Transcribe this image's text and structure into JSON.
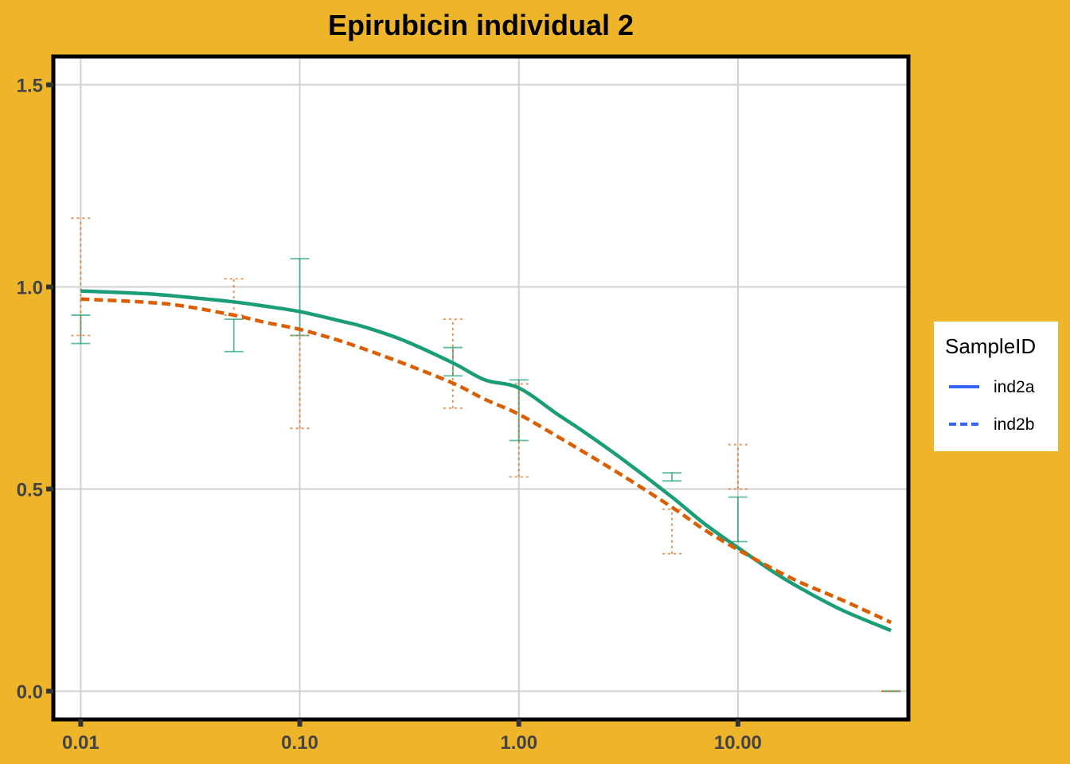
{
  "chart_data": {
    "type": "line",
    "title": "Epirubicin individual 2",
    "xlabel": "",
    "ylabel": "",
    "x_scale": "log10",
    "xlim": [
      0.0075,
      60
    ],
    "ylim": [
      -0.07,
      1.57
    ],
    "x_ticks": [
      0.01,
      0.1,
      1,
      10
    ],
    "x_tick_labels": [
      "0.01",
      "0.10",
      "1.00",
      "10.00"
    ],
    "y_ticks": [
      0,
      0.5,
      1,
      1.5
    ],
    "y_tick_labels": [
      "0.0",
      "0.5",
      "1.0",
      "1.5"
    ],
    "grid": true,
    "legend": {
      "title": "SampleID",
      "placement": "right",
      "entries": [
        {
          "label": "ind2a",
          "line_color": "#3366FF",
          "dash": "solid"
        },
        {
          "label": "ind2b",
          "line_color": "#3366FF",
          "dash": "dashed"
        }
      ]
    },
    "series": [
      {
        "name": "ind2a",
        "color": "#1B9E77",
        "dash": "solid",
        "fit_x": [
          0.01,
          0.02,
          0.03,
          0.05,
          0.07,
          0.1,
          0.15,
          0.2,
          0.3,
          0.5,
          0.7,
          1,
          1.5,
          2,
          3,
          5,
          7,
          10,
          15,
          20,
          30,
          50
        ],
        "fit_y": [
          0.99,
          0.983,
          0.975,
          0.963,
          0.952,
          0.939,
          0.917,
          0.9,
          0.867,
          0.812,
          0.77,
          0.75,
          0.685,
          0.64,
          0.572,
          0.48,
          0.415,
          0.355,
          0.29,
          0.25,
          0.2,
          0.15
        ],
        "points": [
          {
            "x": 0.01,
            "low": 0.86,
            "high": 0.93
          },
          {
            "x": 0.05,
            "low": 0.84,
            "high": 0.92
          },
          {
            "x": 0.1,
            "low": 0.88,
            "high": 1.07
          },
          {
            "x": 0.5,
            "low": 0.78,
            "high": 0.85
          },
          {
            "x": 1,
            "low": 0.62,
            "high": 0.77
          },
          {
            "x": 5,
            "low": 0.52,
            "high": 0.54
          },
          {
            "x": 10,
            "low": 0.37,
            "high": 0.48
          },
          {
            "x": 50,
            "low": 0.0,
            "high": 0.0
          }
        ]
      },
      {
        "name": "ind2b",
        "color": "#D95F02",
        "dash": "dashed",
        "fit_x": [
          0.01,
          0.02,
          0.03,
          0.05,
          0.07,
          0.1,
          0.15,
          0.2,
          0.3,
          0.5,
          0.7,
          1,
          1.5,
          2,
          3,
          5,
          7,
          10,
          15,
          20,
          30,
          50
        ],
        "fit_y": [
          0.97,
          0.962,
          0.952,
          0.93,
          0.912,
          0.895,
          0.868,
          0.845,
          0.81,
          0.762,
          0.722,
          0.685,
          0.63,
          0.59,
          0.532,
          0.455,
          0.4,
          0.35,
          0.298,
          0.265,
          0.225,
          0.17
        ],
        "points": [
          {
            "x": 0.01,
            "low": 0.88,
            "high": 1.17
          },
          {
            "x": 0.05,
            "low": 0.93,
            "high": 1.02
          },
          {
            "x": 0.1,
            "low": 0.65,
            "high": 0.88
          },
          {
            "x": 0.5,
            "low": 0.7,
            "high": 0.92
          },
          {
            "x": 1,
            "low": 0.53,
            "high": 0.76
          },
          {
            "x": 5,
            "low": 0.34,
            "high": 0.45
          },
          {
            "x": 10,
            "low": 0.5,
            "high": 0.61
          },
          {
            "x": 50,
            "low": 0.0,
            "high": 0.0
          }
        ]
      }
    ]
  }
}
